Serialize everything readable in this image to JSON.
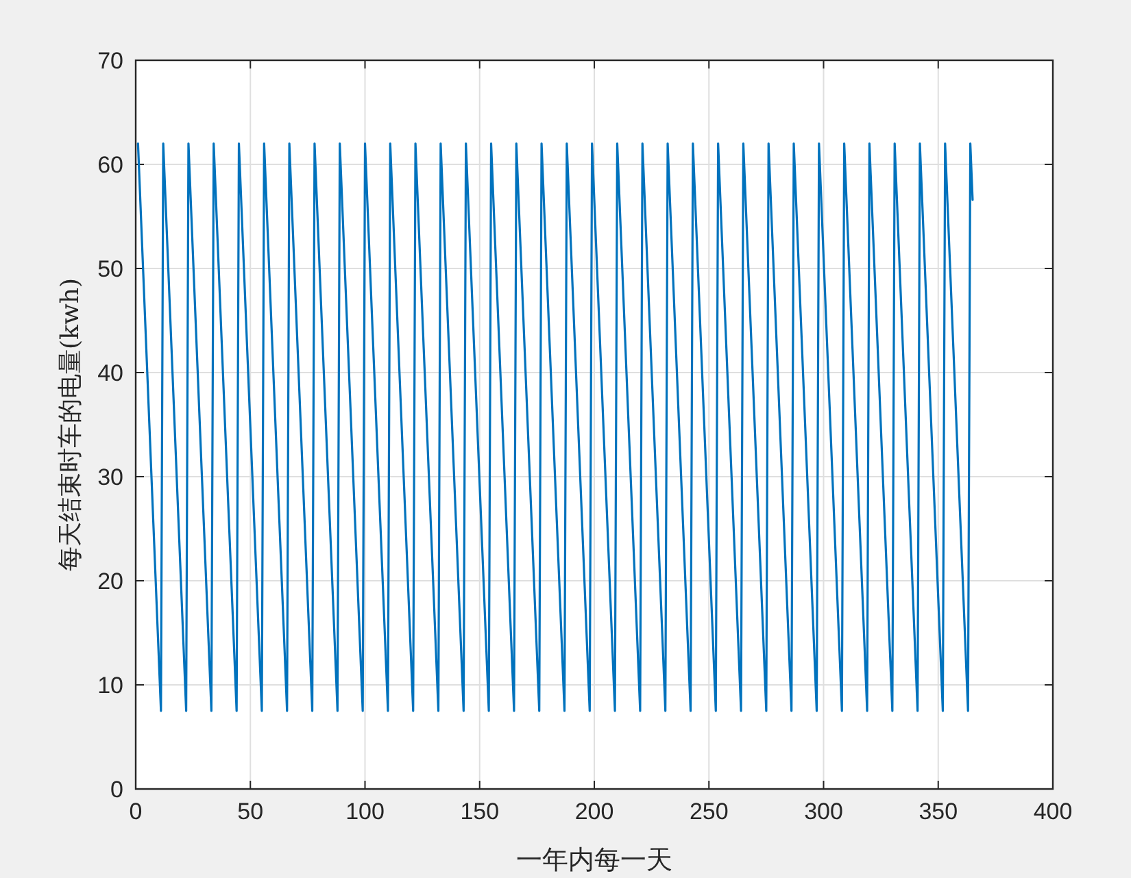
{
  "chart_data": {
    "type": "line",
    "xlabel": "一年内每一天",
    "ylabel": "每天结束时车的电量(kwh)",
    "xlim": [
      0,
      400
    ],
    "ylim": [
      0,
      70
    ],
    "xticks": [
      0,
      50,
      100,
      150,
      200,
      250,
      300,
      350,
      400
    ],
    "yticks": [
      0,
      10,
      20,
      30,
      40,
      50,
      60,
      70
    ],
    "grid": true,
    "line_style": "solid",
    "x": [
      1,
      11,
      12,
      22,
      23,
      33,
      34,
      44,
      45,
      55,
      56,
      66,
      67,
      77,
      78,
      88,
      89,
      99,
      100,
      110,
      111,
      121,
      122,
      132,
      133,
      143,
      144,
      154,
      155,
      165,
      166,
      176,
      177,
      187,
      188,
      198,
      199,
      209,
      210,
      220,
      221,
      231,
      232,
      242,
      243,
      253,
      254,
      264,
      265,
      275,
      276,
      286,
      287,
      297,
      298,
      308,
      309,
      319,
      320,
      330,
      331,
      341,
      342,
      352,
      353,
      363,
      364,
      365
    ],
    "series": [
      {
        "color": "#0072bd",
        "values": [
          62,
          7.5,
          62,
          7.5,
          62,
          7.5,
          62,
          7.5,
          62,
          7.5,
          62,
          7.5,
          62,
          7.5,
          62,
          7.5,
          62,
          7.5,
          62,
          7.5,
          62,
          7.5,
          62,
          7.5,
          62,
          7.5,
          62,
          7.5,
          62,
          7.5,
          62,
          7.5,
          62,
          7.5,
          62,
          7.5,
          62,
          7.5,
          62,
          7.5,
          62,
          7.5,
          62,
          7.5,
          62,
          7.5,
          62,
          7.5,
          62,
          7.5,
          62,
          7.5,
          62,
          7.5,
          62,
          7.5,
          62,
          7.5,
          62,
          7.5,
          62,
          7.5,
          62,
          7.5,
          62,
          7.5,
          62,
          56.6
        ]
      }
    ]
  }
}
